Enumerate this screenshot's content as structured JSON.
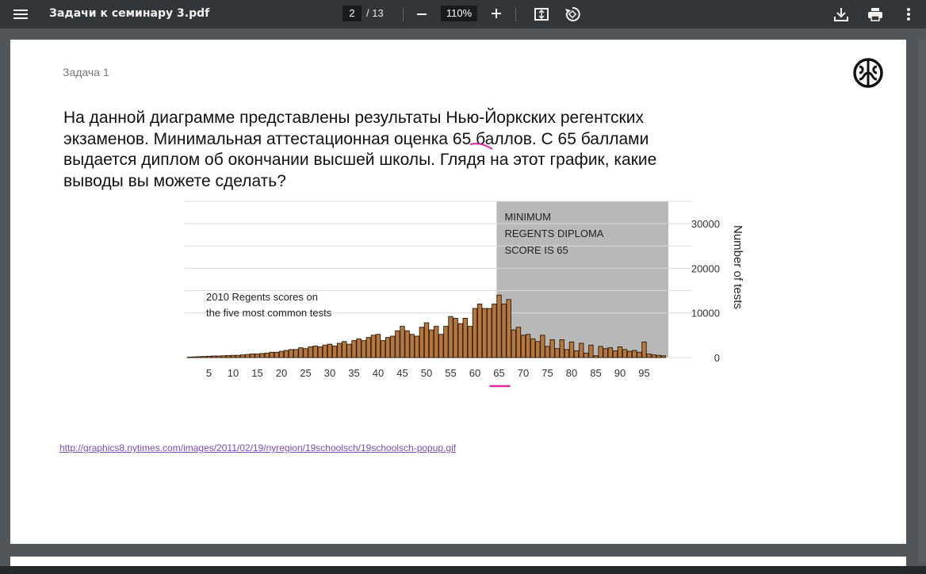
{
  "toolbar": {
    "title": "Задачи к семинару 3.pdf",
    "page_current": "2",
    "page_total": "/ 13",
    "zoom": "110%"
  },
  "document": {
    "heading": "Задача 1",
    "paragraph_lines": [
      "На данной диаграмме представлены результаты Нью-Йоркских регентских",
      "экзаменов. Минимальная аттестационная оценка 65 баллов. С 65 баллами",
      "выдается диплом об окончании высшей школы. Глядя на этот график, какие",
      "выводы вы можете сделать?"
    ],
    "link": "http://graphics8.nytimes.com/images/2011/02/19/nyregion/19schoolsch/19schoolsch-popup.gif"
  },
  "chart_data": {
    "type": "bar",
    "title": "2010 Regents scores on the five most common tests",
    "title_lines": [
      "2010 Regents scores on",
      "the five most common tests"
    ],
    "annotation_lines": [
      "MINIMUM",
      "REGENTS DIPLOMA",
      "SCORE IS 65"
    ],
    "ylabel": "Number of tests",
    "ylim": [
      0,
      35000
    ],
    "y_ticks": [
      0,
      10000,
      20000,
      30000
    ],
    "y_tick_labels": [
      "0",
      "10000",
      "20000",
      "30000"
    ],
    "x_tick_labels": [
      "5",
      "10",
      "15",
      "20",
      "25",
      "30",
      "35",
      "40",
      "45",
      "50",
      "55",
      "60",
      "65",
      "70",
      "75",
      "80",
      "85",
      "90",
      "95"
    ],
    "shaded_region_start": 65,
    "colors": {
      "bar": "#b5773c",
      "shade": "#b8b8b8"
    },
    "x": [
      1,
      2,
      3,
      4,
      5,
      6,
      7,
      8,
      9,
      10,
      11,
      12,
      13,
      14,
      15,
      16,
      17,
      18,
      19,
      20,
      21,
      22,
      23,
      24,
      25,
      26,
      27,
      28,
      29,
      30,
      31,
      32,
      33,
      34,
      35,
      36,
      37,
      38,
      39,
      40,
      41,
      42,
      43,
      44,
      45,
      46,
      47,
      48,
      49,
      50,
      51,
      52,
      53,
      54,
      55,
      56,
      57,
      58,
      59,
      60,
      61,
      62,
      63,
      64,
      65,
      66,
      67,
      68,
      69,
      70,
      71,
      72,
      73,
      74,
      75,
      76,
      77,
      78,
      79,
      80,
      81,
      82,
      83,
      84,
      85,
      86,
      87,
      88,
      89,
      90,
      91,
      92,
      93,
      94,
      95,
      96,
      97,
      98,
      99
    ],
    "values": [
      100,
      150,
      200,
      250,
      300,
      350,
      350,
      400,
      450,
      500,
      500,
      600,
      700,
      800,
      800,
      900,
      1000,
      1200,
      1200,
      1400,
      1600,
      1800,
      1800,
      2200,
      2000,
      2400,
      2600,
      2400,
      2800,
      3000,
      2600,
      3200,
      3600,
      3000,
      3800,
      4200,
      3800,
      4500,
      5000,
      5200,
      3800,
      4500,
      4800,
      6000,
      7000,
      6000,
      5200,
      4800,
      6800,
      7800,
      6200,
      7000,
      5200,
      7000,
      9200,
      8800,
      7600,
      8800,
      7000,
      11000,
      12000,
      11000,
      11000,
      12000,
      14000,
      12000,
      13000,
      6200,
      6800,
      5000,
      5200,
      4200,
      3600,
      5000,
      2500,
      4000,
      2000,
      4000,
      1800,
      3500,
      1500,
      3200,
      1000,
      2800,
      400,
      2500,
      2000,
      2200,
      1500,
      2400,
      1800,
      1400,
      1600,
      1200,
      3500,
      800,
      600,
      500,
      400
    ]
  }
}
